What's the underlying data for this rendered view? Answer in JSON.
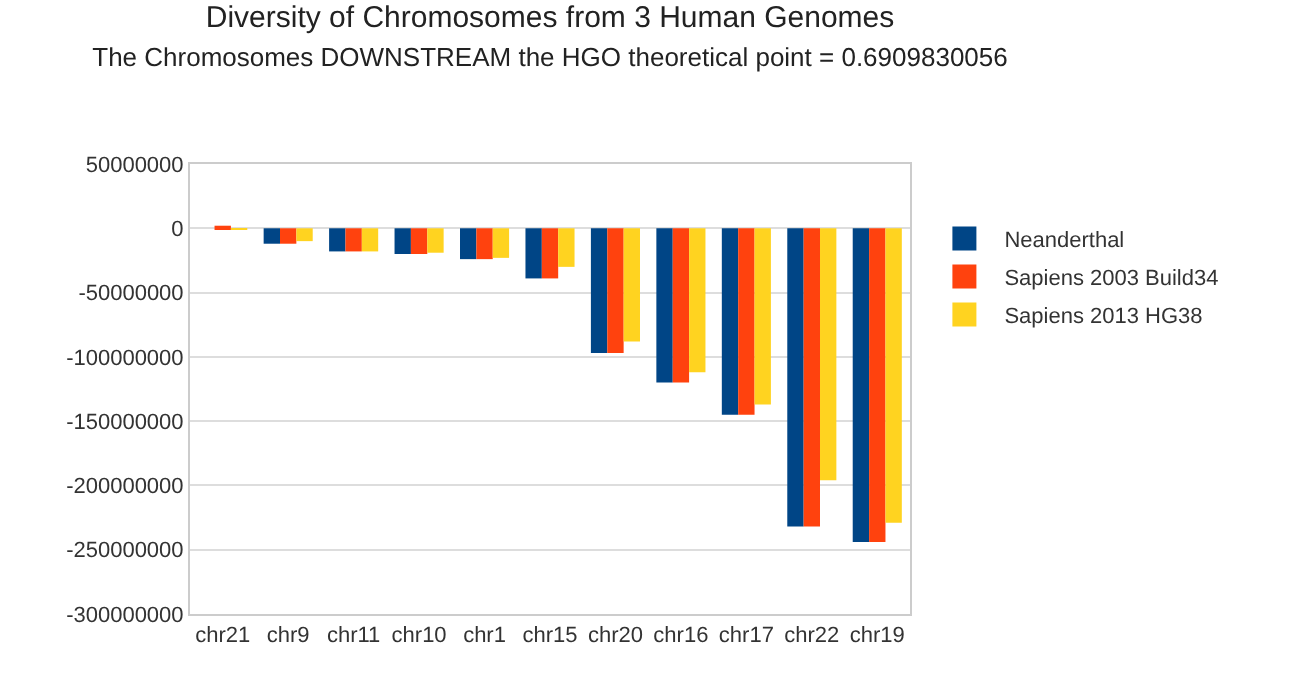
{
  "chart_data": {
    "type": "bar",
    "title": "Diversity of Chromosomes from 3 Human Genomes",
    "subtitle": "The Chromosomes DOWNSTREAM the HGO theoretical point = 0.6909830056",
    "categories": [
      "chr21",
      "chr9",
      "chr11",
      "chr10",
      "chr1",
      "chr15",
      "chr20",
      "chr16",
      "chr17",
      "chr22",
      "chr19"
    ],
    "series": [
      {
        "name": "Neanderthal",
        "color": "#004586",
        "values": [
          0,
          -12000000,
          -18000000,
          -20000000,
          -24000000,
          -39000000,
          -97000000,
          -120000000,
          -145000000,
          -232000000,
          -244000000
        ]
      },
      {
        "name": "Sapiens 2003 Build34",
        "color": "#ff420e",
        "values": [
          2000000,
          -12000000,
          -18000000,
          -20000000,
          -24000000,
          -39000000,
          -97000000,
          -120000000,
          -145000000,
          -232000000,
          -244000000
        ]
      },
      {
        "name": "Sapiens 2013 HG38",
        "color": "#ffd320",
        "values": [
          -1000000,
          -10000000,
          -18000000,
          -19000000,
          -23000000,
          -30000000,
          -88000000,
          -112000000,
          -137000000,
          -196000000,
          -229000000
        ]
      }
    ],
    "ylim": [
      -300000000,
      50000000
    ],
    "yticks": [
      -300000000,
      -250000000,
      -200000000,
      -150000000,
      -100000000,
      -50000000,
      0,
      50000000
    ],
    "grid": "y",
    "legend": "right"
  }
}
